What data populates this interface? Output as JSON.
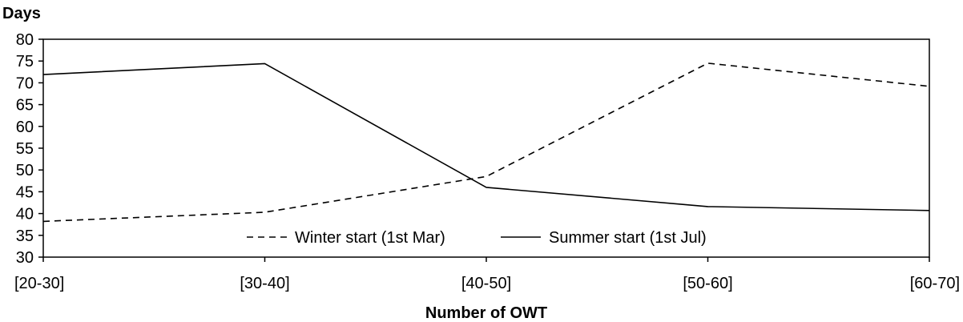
{
  "chart_data": {
    "type": "line",
    "xlabel": "Number of OWT",
    "ylabel": "Days",
    "categories": [
      "[20-30]",
      "[30-40]",
      "[40-50]",
      "[50-60]",
      "[60-70]"
    ],
    "ylim": [
      30,
      80
    ],
    "yticks": [
      30,
      35,
      40,
      45,
      50,
      55,
      60,
      65,
      70,
      75,
      80
    ],
    "grid": false,
    "legend_position": "inside-bottom-center",
    "series": [
      {
        "name": "Winter start (1st Mar)",
        "style": "dashed",
        "color": "#000000",
        "values": [
          38.2,
          40.3,
          48.5,
          74.5,
          69.2
        ]
      },
      {
        "name": "Summer start (1st Jul)",
        "style": "solid",
        "color": "#000000",
        "values": [
          71.9,
          74.4,
          46.0,
          41.6,
          40.7
        ]
      }
    ]
  }
}
